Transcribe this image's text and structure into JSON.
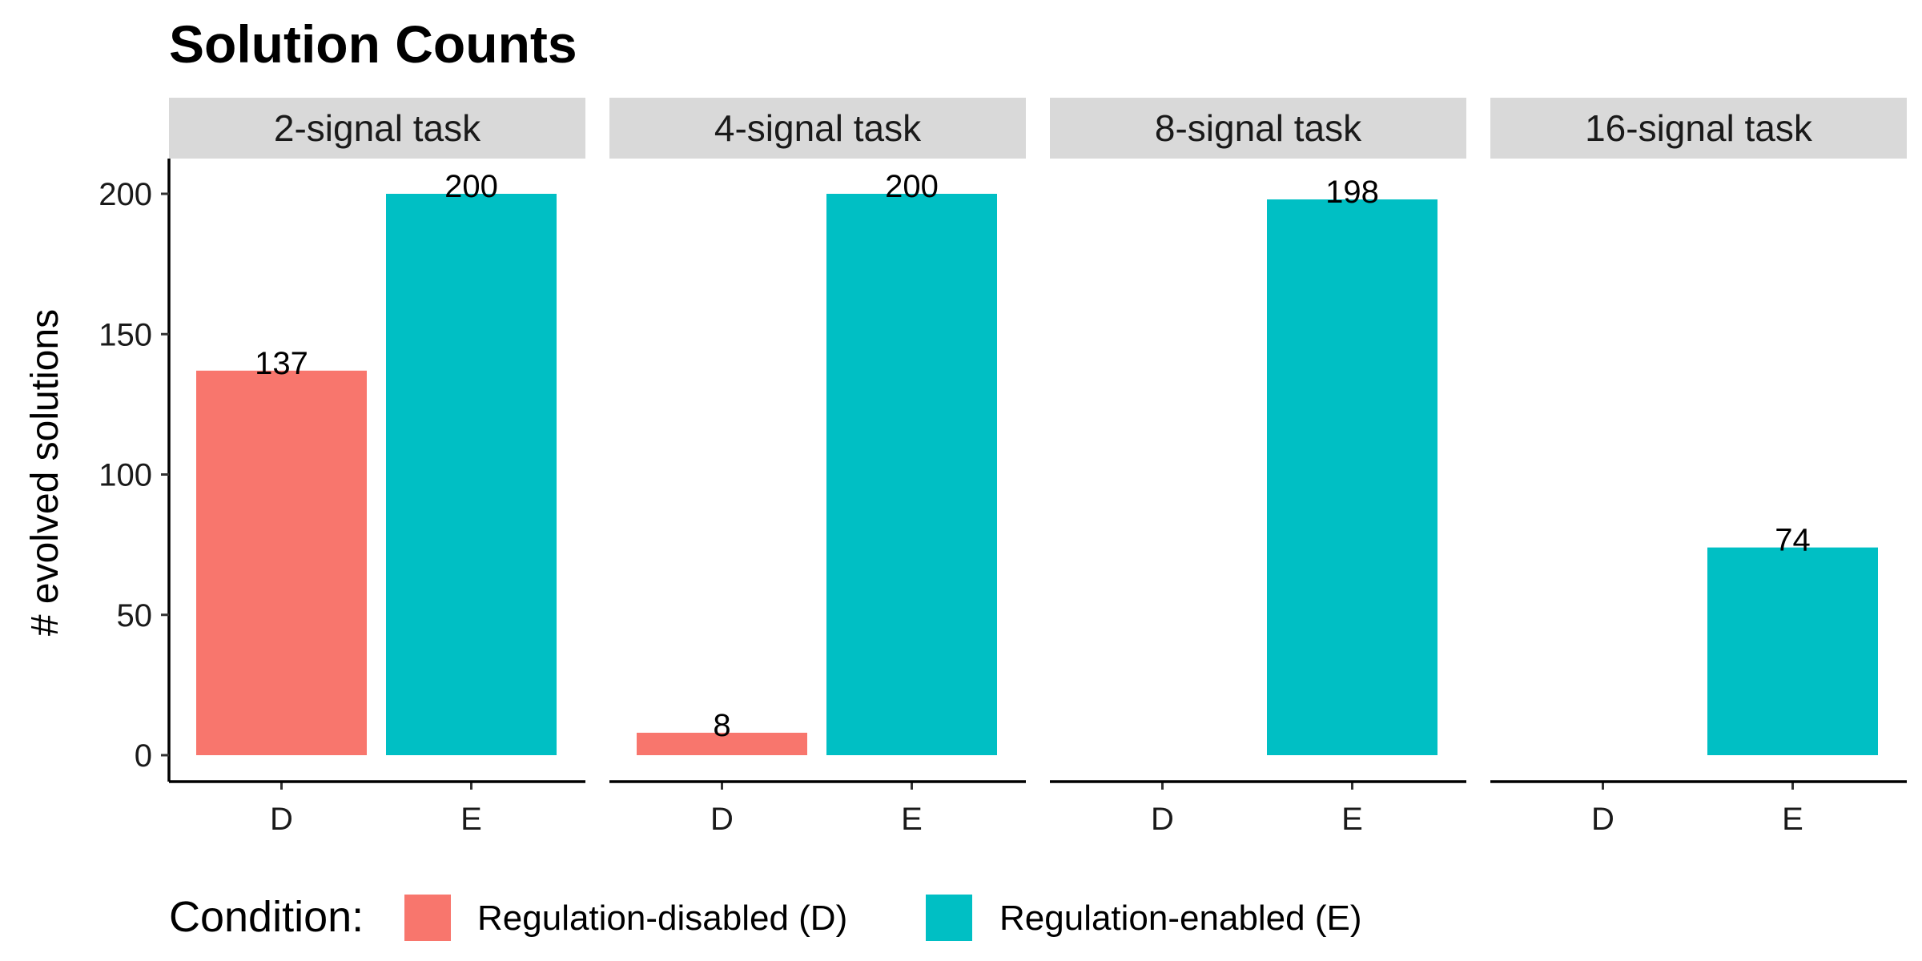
{
  "chart_data": {
    "type": "bar",
    "title": "Solution Counts",
    "ylabel": "# evolved solutions",
    "xlabel": "",
    "ylim": [
      0,
      210
    ],
    "yticks": [
      0,
      50,
      100,
      150,
      200
    ],
    "categories": [
      "D",
      "E"
    ],
    "facets": [
      {
        "label": "2-signal task",
        "values": [
          137,
          200
        ],
        "labels": [
          "137",
          "200"
        ]
      },
      {
        "label": "4-signal task",
        "values": [
          8,
          200
        ],
        "labels": [
          "8",
          "200"
        ]
      },
      {
        "label": "8-signal task",
        "values": [
          0,
          198
        ],
        "labels": [
          "",
          "198"
        ]
      },
      {
        "label": "16-signal task",
        "values": [
          0,
          74
        ],
        "labels": [
          "",
          "74"
        ]
      }
    ],
    "legend": {
      "title": "Condition:",
      "position": "bottom",
      "entries": [
        {
          "key": "D",
          "label": "Regulation-disabled (D)",
          "color": "#F8766D"
        },
        {
          "key": "E",
          "label": "Regulation-enabled (E)",
          "color": "#00BFC4"
        }
      ]
    },
    "grid": false
  }
}
